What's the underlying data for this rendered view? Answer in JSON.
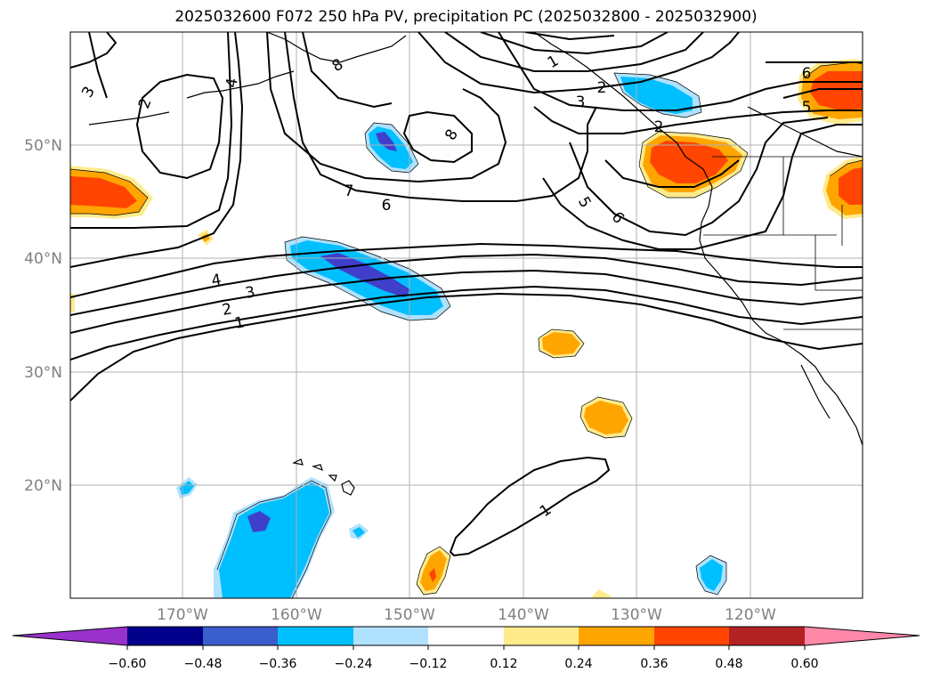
{
  "title": "2025032600 F072 250 hPa PV, precipitation PC (2025032800 - 2025032900)",
  "map": {
    "lat_labels": [
      "50°N",
      "40°N",
      "30°N",
      "20°N"
    ],
    "lon_labels": [
      "170°W",
      "160°W",
      "150°W",
      "140°W",
      "130°W",
      "120°W"
    ],
    "pv_contour_labels": [
      "3",
      "2",
      "4",
      "8",
      "7",
      "6",
      "8",
      "1",
      "2",
      "3",
      "2",
      "5",
      "6",
      "6",
      "5",
      "4",
      "3",
      "2",
      "1",
      "1"
    ],
    "colors": {
      "neg_dark": "#3f3fcc",
      "neg_mid": "#00bfff",
      "neg_light": "#b0e2ff",
      "pos_light": "#ffeb8c",
      "pos_mid": "#ffa500",
      "pos_dark": "#ff4500",
      "grid": "#b0b0b0"
    }
  },
  "colorbar": {
    "ticks": [
      "−0.60",
      "−0.48",
      "−0.36",
      "−0.24",
      "−0.12",
      "0.12",
      "0.24",
      "0.36",
      "0.48",
      "0.60"
    ],
    "colors": [
      "#9932cc",
      "#00008b",
      "#3a5fcd",
      "#00bfff",
      "#b0e2ff",
      "#ffffff",
      "#ffeb8c",
      "#ffa500",
      "#ff4500",
      "#b22222",
      "#ff88aa",
      "#ff88cc"
    ]
  }
}
